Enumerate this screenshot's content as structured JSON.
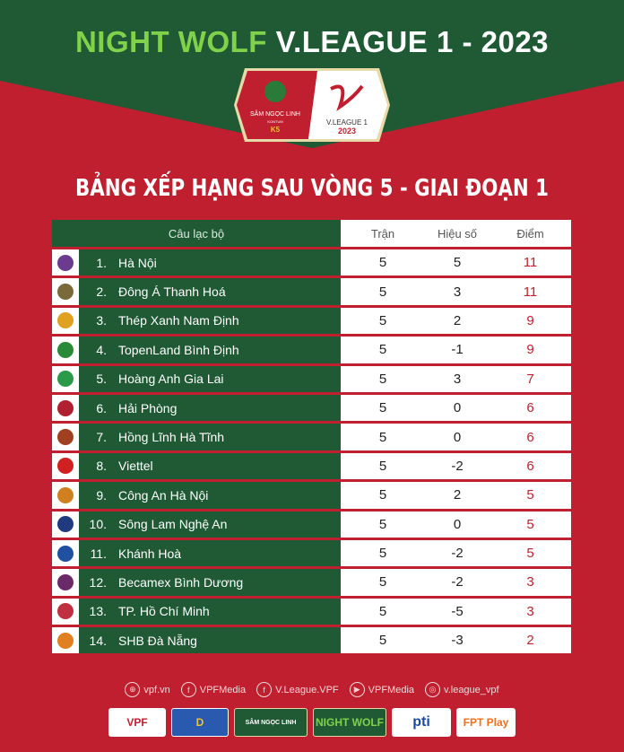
{
  "header": {
    "title_accent": "NIGHT WOLF",
    "title_main": "V.LEAGUE 1 - 2023",
    "badge_left": "SÂM NGỌC LINH",
    "badge_left_sub": "KONTUM",
    "badge_left_mark": "K5",
    "badge_right": "V.LEAGUE 1",
    "badge_right_year": "2023"
  },
  "subtitle": "BẢNG XẾP HẠNG SAU VÒNG 5 - GIAI ĐOẠN 1",
  "table": {
    "columns": [
      "Câu lạc bộ",
      "Trận",
      "Hiệu số",
      "Điểm"
    ],
    "rows": [
      {
        "rank": "1.",
        "club": "Hà Nội",
        "played": "5",
        "gd": "5",
        "pts": "11",
        "color": "#6a3b8f"
      },
      {
        "rank": "2.",
        "club": "Đông Á Thanh Hoá",
        "played": "5",
        "gd": "3",
        "pts": "11",
        "color": "#7a6a3a"
      },
      {
        "rank": "3.",
        "club": "Thép Xanh Nam Định",
        "played": "5",
        "gd": "2",
        "pts": "9",
        "color": "#e0a020"
      },
      {
        "rank": "4.",
        "club": "TopenLand Bình Định",
        "played": "5",
        "gd": "-1",
        "pts": "9",
        "color": "#2a8a3a"
      },
      {
        "rank": "5.",
        "club": "Hoàng Anh Gia Lai",
        "played": "5",
        "gd": "3",
        "pts": "7",
        "color": "#2a9a4a"
      },
      {
        "rank": "6.",
        "club": "Hải Phòng",
        "played": "5",
        "gd": "0",
        "pts": "6",
        "color": "#b02030"
      },
      {
        "rank": "7.",
        "club": "Hồng Lĩnh Hà Tĩnh",
        "played": "5",
        "gd": "0",
        "pts": "6",
        "color": "#a04020"
      },
      {
        "rank": "8.",
        "club": "Viettel",
        "played": "5",
        "gd": "-2",
        "pts": "6",
        "color": "#d02020"
      },
      {
        "rank": "9.",
        "club": "Công An Hà Nội",
        "played": "5",
        "gd": "2",
        "pts": "5",
        "color": "#d08020"
      },
      {
        "rank": "10.",
        "club": "Sông Lam Nghệ An",
        "played": "5",
        "gd": "0",
        "pts": "5",
        "color": "#203a80"
      },
      {
        "rank": "11.",
        "club": "Khánh Hoà",
        "played": "5",
        "gd": "-2",
        "pts": "5",
        "color": "#2050a0"
      },
      {
        "rank": "12.",
        "club": "Becamex Bình Dương",
        "played": "5",
        "gd": "-2",
        "pts": "3",
        "color": "#6a2a6a"
      },
      {
        "rank": "13.",
        "club": "TP. Hồ Chí Minh",
        "played": "5",
        "gd": "-5",
        "pts": "3",
        "color": "#c03040"
      },
      {
        "rank": "14.",
        "club": "SHB Đà Nẵng",
        "played": "5",
        "gd": "-3",
        "pts": "2",
        "color": "#e08020"
      }
    ]
  },
  "social": [
    {
      "icon": "globe-icon",
      "glyph": "⊕",
      "label": "vpf.vn"
    },
    {
      "icon": "facebook-icon",
      "glyph": "f",
      "label": "VPFMedia"
    },
    {
      "icon": "facebook-icon",
      "glyph": "f",
      "label": "V.League.VPF"
    },
    {
      "icon": "youtube-icon",
      "glyph": "▶",
      "label": "VPFMedia"
    },
    {
      "icon": "instagram-icon",
      "glyph": "◎",
      "label": "v.league_vpf"
    }
  ],
  "sponsors": [
    "VPF",
    "D",
    "SÂM NGỌC LINH",
    "NIGHT WOLF",
    "pti",
    "FPT Play"
  ],
  "colors": {
    "green": "#1f5a35",
    "red": "#c01f2f",
    "accent": "#7fd24a"
  }
}
